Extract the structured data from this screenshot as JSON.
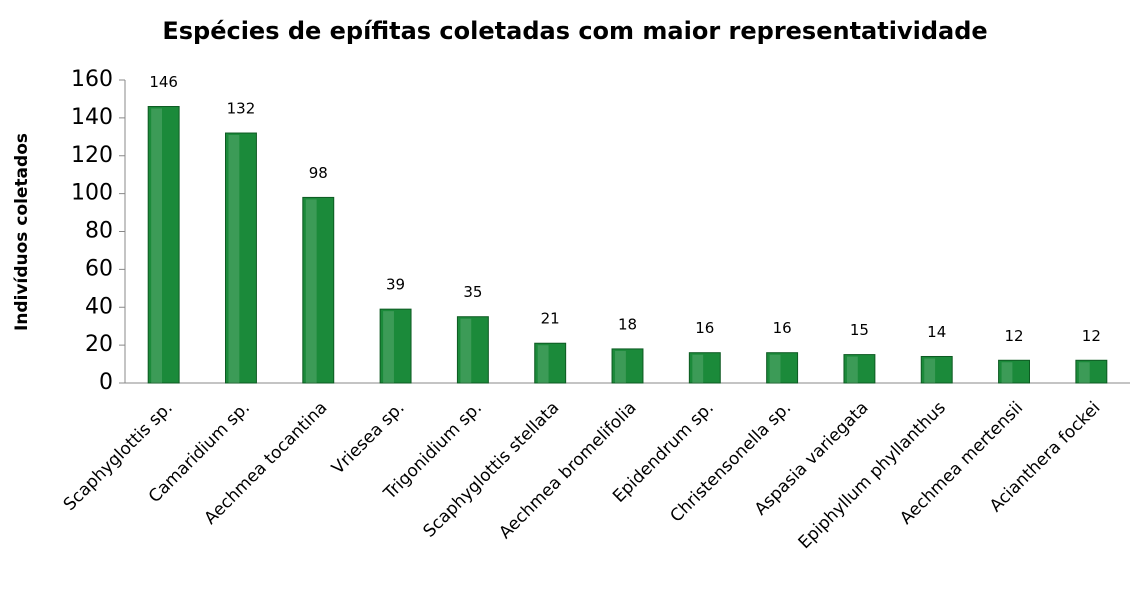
{
  "chart_data": {
    "type": "bar",
    "title": "Espécies de epífitas coletadas com maior representatividade",
    "y_label": "Indivíduos coletados",
    "categories": [
      "Scaphyglottis sp.",
      "Camaridium sp.",
      "Aechmea tocantina",
      "Vriesea sp.",
      "Trigonidium sp.",
      "Scaphyglottis stellata",
      "Aechmea bromelifolia",
      "Epidendrum sp.",
      "Christensonella sp.",
      "Aspasia variegata",
      "Epiphyllum phyllanthus",
      "Aechmea mertensii",
      "Acianthera fockei"
    ],
    "values": [
      146,
      132,
      98,
      39,
      35,
      21,
      18,
      16,
      16,
      15,
      14,
      12,
      12
    ],
    "color": "#1b8a3a",
    "ylim": [
      0,
      160
    ],
    "yticks": [
      0,
      20,
      40,
      60,
      80,
      100,
      120,
      140,
      160
    ],
    "grid": false
  }
}
